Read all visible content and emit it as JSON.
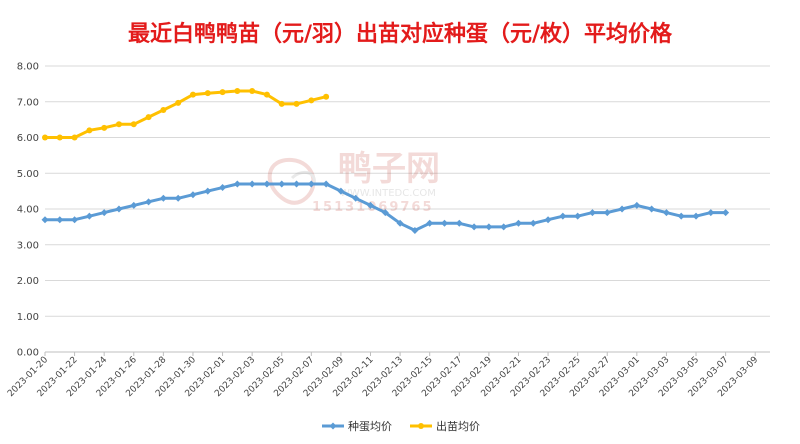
{
  "chart_data": {
    "type": "line",
    "title": "最近白鸭鸭苗（元/羽）出苗对应种蛋（元/枚）平均价格",
    "xlabel": "",
    "ylabel": "",
    "ylim": [
      0,
      8
    ],
    "y_ticks": [
      "0.00",
      "1.00",
      "2.00",
      "3.00",
      "4.00",
      "5.00",
      "6.00",
      "7.00",
      "8.00"
    ],
    "x_range": [
      "2023-01-20",
      "2023-03-10"
    ],
    "x_ticks": [
      "2023-01-20",
      "2023-01-22",
      "2023-01-24",
      "2023-01-26",
      "2023-01-28",
      "2023-01-30",
      "2023-02-01",
      "2023-02-03",
      "2023-02-05",
      "2023-02-07",
      "2023-02-09",
      "2023-02-11",
      "2023-02-13",
      "2023-02-15",
      "2023-02-17",
      "2023-02-19",
      "2023-02-21",
      "2023-02-23",
      "2023-02-25",
      "2023-02-27",
      "2023-03-01",
      "2023-03-03",
      "2023-03-05",
      "2023-03-07",
      "2023-03-09"
    ],
    "grid": true,
    "legend_position": "bottom",
    "series": [
      {
        "name": "种蛋均价",
        "color": "#5b9bd5",
        "marker": "diamond",
        "points": [
          [
            "2023-01-20",
            3.7
          ],
          [
            "2023-01-21",
            3.7
          ],
          [
            "2023-01-22",
            3.7
          ],
          [
            "2023-01-23",
            3.8
          ],
          [
            "2023-01-24",
            3.9
          ],
          [
            "2023-01-25",
            4.0
          ],
          [
            "2023-01-26",
            4.1
          ],
          [
            "2023-01-27",
            4.2
          ],
          [
            "2023-01-28",
            4.3
          ],
          [
            "2023-01-29",
            4.3
          ],
          [
            "2023-01-30",
            4.4
          ],
          [
            "2023-01-31",
            4.5
          ],
          [
            "2023-02-01",
            4.6
          ],
          [
            "2023-02-02",
            4.7
          ],
          [
            "2023-02-03",
            4.7
          ],
          [
            "2023-02-04",
            4.7
          ],
          [
            "2023-02-05",
            4.7
          ],
          [
            "2023-02-06",
            4.7
          ],
          [
            "2023-02-07",
            4.7
          ],
          [
            "2023-02-08",
            4.7
          ],
          [
            "2023-02-09",
            4.5
          ],
          [
            "2023-02-10",
            4.3
          ],
          [
            "2023-02-11",
            4.1
          ],
          [
            "2023-02-12",
            3.9
          ],
          [
            "2023-02-13",
            3.6
          ],
          [
            "2023-02-14",
            3.4
          ],
          [
            "2023-02-15",
            3.6
          ],
          [
            "2023-02-16",
            3.6
          ],
          [
            "2023-02-17",
            3.6
          ],
          [
            "2023-02-18",
            3.5
          ],
          [
            "2023-02-19",
            3.5
          ],
          [
            "2023-02-20",
            3.5
          ],
          [
            "2023-02-21",
            3.6
          ],
          [
            "2023-02-22",
            3.6
          ],
          [
            "2023-02-23",
            3.7
          ],
          [
            "2023-02-24",
            3.8
          ],
          [
            "2023-02-25",
            3.8
          ],
          [
            "2023-02-26",
            3.9
          ],
          [
            "2023-02-27",
            3.9
          ],
          [
            "2023-02-28",
            4.0
          ],
          [
            "2023-03-01",
            4.1
          ],
          [
            "2023-03-02",
            4.0
          ],
          [
            "2023-03-03",
            3.9
          ],
          [
            "2023-03-04",
            3.8
          ],
          [
            "2023-03-05",
            3.8
          ],
          [
            "2023-03-06",
            3.9
          ],
          [
            "2023-03-07",
            3.9
          ]
        ]
      },
      {
        "name": "出苗均价",
        "color": "#ffc000",
        "marker": "circle",
        "points": [
          [
            "2023-01-20",
            6.0
          ],
          [
            "2023-01-21",
            6.0
          ],
          [
            "2023-01-22",
            6.0
          ],
          [
            "2023-01-23",
            6.2
          ],
          [
            "2023-01-24",
            6.27
          ],
          [
            "2023-01-25",
            6.37
          ],
          [
            "2023-01-26",
            6.37
          ],
          [
            "2023-01-27",
            6.57
          ],
          [
            "2023-01-28",
            6.77
          ],
          [
            "2023-01-29",
            6.97
          ],
          [
            "2023-01-30",
            7.2
          ],
          [
            "2023-01-31",
            7.24
          ],
          [
            "2023-02-01",
            7.27
          ],
          [
            "2023-02-02",
            7.3
          ],
          [
            "2023-02-03",
            7.3
          ],
          [
            "2023-02-04",
            7.2
          ],
          [
            "2023-02-05",
            6.94
          ],
          [
            "2023-02-06",
            6.94
          ],
          [
            "2023-02-07",
            7.04
          ],
          [
            "2023-02-08",
            7.14
          ]
        ]
      }
    ]
  },
  "watermark": {
    "brand": "鸭子网",
    "url": "WWW.INTEDC.COM",
    "phone": "15131069765"
  }
}
